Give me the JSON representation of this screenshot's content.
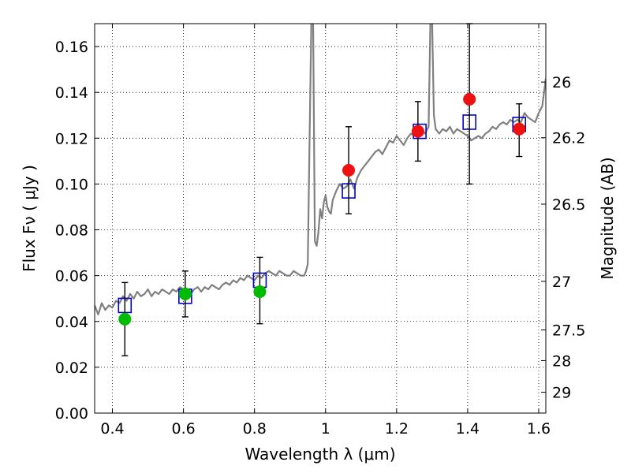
{
  "chart_data": {
    "type": "scatter",
    "xlabel": "Wavelength  λ (μm)",
    "ylabel": "Flux  Fν  ( μJy )",
    "ylabel_right": "Magnitude (AB)",
    "xlim": [
      0.35,
      1.62
    ],
    "ylim": [
      0.0,
      0.17
    ],
    "grid": true,
    "x_ticks": [
      0.4,
      0.6,
      0.8,
      1.0,
      1.2,
      1.4,
      1.6
    ],
    "x_tick_labels": [
      "0.4",
      "0.6",
      "0.8",
      "1",
      "1.2",
      "1.4",
      "1.6"
    ],
    "y_ticks": [
      0.0,
      0.02,
      0.04,
      0.06,
      0.08,
      0.1,
      0.12,
      0.14,
      0.16
    ],
    "y_tick_labels": [
      "0.00",
      "0.02",
      "0.04",
      "0.06",
      "0.08",
      "0.10",
      "0.12",
      "0.14",
      "0.16"
    ],
    "right_ticks": [
      {
        "label": "26",
        "flux": 0.1445
      },
      {
        "label": "26.2",
        "flux": 0.1202
      },
      {
        "label": "26.5",
        "flux": 0.0912
      },
      {
        "label": "27",
        "flux": 0.0575
      },
      {
        "label": "27.5",
        "flux": 0.0363
      },
      {
        "label": "28",
        "flux": 0.0229
      },
      {
        "label": "29",
        "flux": 0.0091
      }
    ],
    "series": [
      {
        "color": "#808080",
        "style": "line",
        "x": [
          0.35,
          0.36,
          0.37,
          0.38,
          0.39,
          0.4,
          0.41,
          0.42,
          0.43,
          0.44,
          0.45,
          0.46,
          0.47,
          0.48,
          0.49,
          0.5,
          0.51,
          0.52,
          0.53,
          0.54,
          0.55,
          0.56,
          0.57,
          0.58,
          0.59,
          0.6,
          0.61,
          0.62,
          0.63,
          0.64,
          0.65,
          0.66,
          0.67,
          0.68,
          0.69,
          0.7,
          0.71,
          0.72,
          0.73,
          0.74,
          0.75,
          0.76,
          0.77,
          0.78,
          0.79,
          0.8,
          0.81,
          0.82,
          0.83,
          0.84,
          0.85,
          0.86,
          0.87,
          0.88,
          0.89,
          0.9,
          0.91,
          0.92,
          0.93,
          0.94,
          0.945,
          0.95,
          0.955,
          0.96,
          0.965,
          0.97,
          0.975,
          0.98,
          0.985,
          0.99,
          0.995,
          1.0,
          1.005,
          1.01,
          1.015,
          1.02,
          1.03,
          1.04,
          1.05,
          1.06,
          1.07,
          1.08,
          1.09,
          1.1,
          1.11,
          1.12,
          1.13,
          1.14,
          1.15,
          1.16,
          1.17,
          1.18,
          1.19,
          1.2,
          1.21,
          1.22,
          1.23,
          1.24,
          1.25,
          1.26,
          1.27,
          1.28,
          1.29,
          1.295,
          1.3,
          1.305,
          1.31,
          1.32,
          1.33,
          1.34,
          1.35,
          1.36,
          1.37,
          1.38,
          1.39,
          1.4,
          1.41,
          1.42,
          1.43,
          1.44,
          1.45,
          1.46,
          1.47,
          1.48,
          1.49,
          1.5,
          1.51,
          1.52,
          1.53,
          1.54,
          1.55,
          1.56,
          1.57,
          1.58,
          1.59,
          1.6,
          1.61,
          1.62
        ],
        "y": [
          0.047,
          0.043,
          0.048,
          0.045,
          0.047,
          0.046,
          0.049,
          0.048,
          0.051,
          0.049,
          0.052,
          0.05,
          0.053,
          0.051,
          0.052,
          0.054,
          0.051,
          0.053,
          0.052,
          0.054,
          0.053,
          0.052,
          0.054,
          0.053,
          0.055,
          0.054,
          0.053,
          0.052,
          0.054,
          0.055,
          0.053,
          0.055,
          0.054,
          0.056,
          0.055,
          0.054,
          0.056,
          0.057,
          0.056,
          0.058,
          0.057,
          0.059,
          0.058,
          0.06,
          0.059,
          0.058,
          0.06,
          0.059,
          0.061,
          0.062,
          0.061,
          0.06,
          0.062,
          0.061,
          0.06,
          0.06,
          0.062,
          0.061,
          0.06,
          0.06,
          0.062,
          0.065,
          0.12,
          0.17,
          0.17,
          0.075,
          0.073,
          0.079,
          0.089,
          0.085,
          0.092,
          0.095,
          0.09,
          0.088,
          0.087,
          0.093,
          0.097,
          0.1,
          0.098,
          0.099,
          0.102,
          0.098,
          0.103,
          0.106,
          0.108,
          0.11,
          0.112,
          0.114,
          0.115,
          0.113,
          0.116,
          0.119,
          0.118,
          0.121,
          0.119,
          0.117,
          0.12,
          0.122,
          0.121,
          0.123,
          0.124,
          0.122,
          0.125,
          0.17,
          0.17,
          0.13,
          0.124,
          0.122,
          0.124,
          0.123,
          0.125,
          0.122,
          0.124,
          0.123,
          0.122,
          0.121,
          0.119,
          0.12,
          0.121,
          0.12,
          0.122,
          0.123,
          0.125,
          0.124,
          0.126,
          0.127,
          0.126,
          0.128,
          0.127,
          0.128,
          0.127,
          0.131,
          0.129,
          0.128,
          0.127,
          0.131,
          0.134,
          0.146
        ]
      },
      {
        "marker": "open-square",
        "color": "#0000cc",
        "x": [
          0.435,
          0.605,
          0.815,
          1.065,
          1.265,
          1.405,
          1.545
        ],
        "y": [
          0.047,
          0.051,
          0.058,
          0.097,
          0.123,
          0.127,
          0.126
        ]
      },
      {
        "marker": "filled-circle",
        "color": "#00bb00",
        "x": [
          0.435,
          0.605,
          0.815
        ],
        "y": [
          0.041,
          0.052,
          0.053
        ],
        "yerr_low": [
          0.025,
          0.042,
          0.039
        ],
        "yerr_high": [
          0.057,
          0.062,
          0.068
        ]
      },
      {
        "marker": "filled-circle",
        "color": "#ee1111",
        "x": [
          1.065,
          1.26,
          1.405,
          1.545
        ],
        "y": [
          0.106,
          0.123,
          0.137,
          0.124
        ],
        "yerr_low": [
          0.087,
          0.11,
          0.1,
          0.112
        ],
        "yerr_high": [
          0.125,
          0.136,
          0.17,
          0.135
        ]
      }
    ]
  }
}
